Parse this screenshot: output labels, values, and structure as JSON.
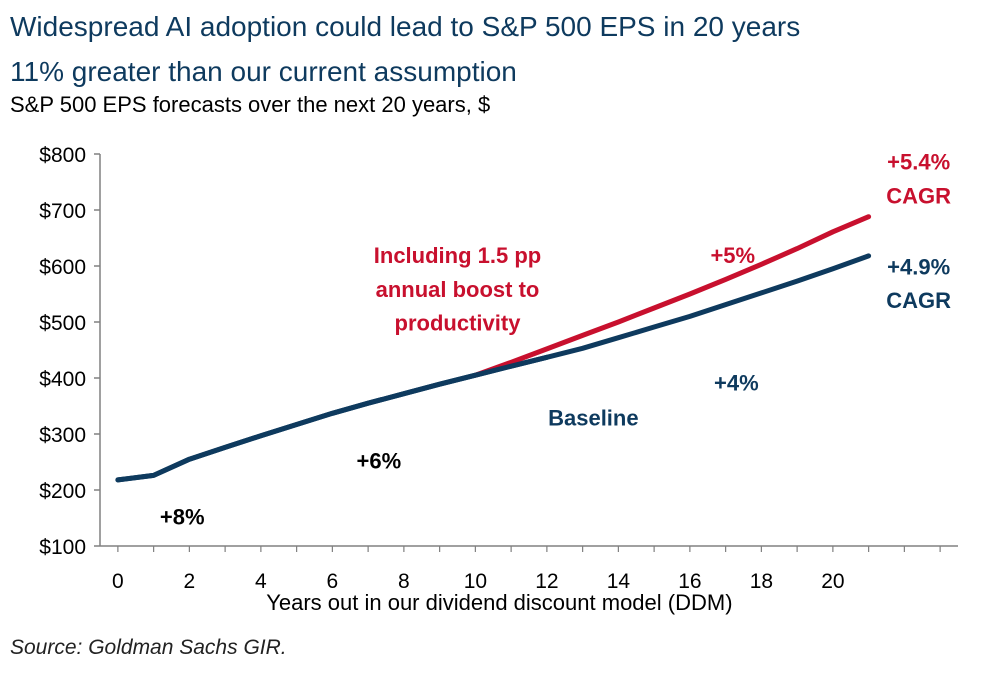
{
  "title_line1": "Widespread AI adoption could lead to S&P 500 EPS in 20 years",
  "title_line2": "11% greater than our current assumption",
  "subtitle": "S&P 500 EPS forecasts over the next 20 years, $",
  "source": "Source: Goldman Sachs GIR.",
  "colors": {
    "baseline": "#0e3a5e",
    "ai": "#c8102e",
    "title": "#0e3a5e"
  },
  "chart_data": {
    "type": "line",
    "xlabel": "Years out in our dividend discount model (DDM)",
    "ylabel": "",
    "xlim": [
      -0.5,
      23.5
    ],
    "ylim": [
      100,
      800
    ],
    "xticks": [
      0,
      2,
      4,
      6,
      8,
      10,
      12,
      14,
      16,
      18,
      20
    ],
    "yticks": [
      100,
      200,
      300,
      400,
      500,
      600,
      700,
      800
    ],
    "ytick_labels": [
      "$100",
      "$200",
      "$300",
      "$400",
      "$500",
      "$600",
      "$700",
      "$800"
    ],
    "grid": false,
    "legend": "none",
    "series": [
      {
        "key": "baseline",
        "x": [
          0,
          1,
          2,
          3,
          4,
          5,
          6,
          7,
          8,
          9,
          10,
          11,
          12,
          13,
          14,
          15,
          16,
          17,
          18,
          19,
          20,
          21
        ],
        "values": [
          218,
          226,
          255,
          276,
          297,
          317,
          337,
          355,
          372,
          389,
          405,
          421,
          437,
          453,
          472,
          491,
          510,
          531,
          552,
          573,
          595,
          618
        ]
      },
      {
        "key": "ai",
        "x": [
          10,
          11,
          12,
          13,
          14,
          15,
          16,
          17,
          18,
          19,
          20,
          21
        ],
        "values": [
          405,
          428,
          452,
          476,
          500,
          525,
          550,
          576,
          603,
          631,
          661,
          688
        ]
      }
    ],
    "annotations": [
      {
        "key": "g8",
        "text": "+8%",
        "x": 1.8,
        "y": 138,
        "color": "#000000"
      },
      {
        "key": "g6",
        "text": "+6%",
        "x": 7.3,
        "y": 238,
        "color": "#000000"
      },
      {
        "key": "g4",
        "text": "+4%",
        "x": 17.3,
        "y": 378,
        "color": "#0e3a5e"
      },
      {
        "key": "g5",
        "text": "+5%",
        "x": 17.2,
        "y": 605,
        "color": "#c8102e"
      },
      {
        "key": "baseline",
        "text": "Baseline",
        "x": 13.3,
        "y": 315,
        "color": "#0e3a5e"
      },
      {
        "key": "incl1",
        "text": "Including 1.5 pp",
        "x": 9.5,
        "y": 605,
        "color": "#c8102e"
      },
      {
        "key": "incl2",
        "text": "annual boost to",
        "x": 9.5,
        "y": 545,
        "color": "#c8102e"
      },
      {
        "key": "incl3",
        "text": "productivity",
        "x": 9.5,
        "y": 485,
        "color": "#c8102e"
      },
      {
        "key": "cagr54a",
        "text": "+5.4%",
        "x": 22.4,
        "y": 772,
        "color": "#c8102e"
      },
      {
        "key": "cagr54b",
        "text": "CAGR",
        "x": 22.4,
        "y": 712,
        "color": "#c8102e"
      },
      {
        "key": "cagr49a",
        "text": "+4.9%",
        "x": 22.4,
        "y": 585,
        "color": "#0e3a5e"
      },
      {
        "key": "cagr49b",
        "text": "CAGR",
        "x": 22.4,
        "y": 525,
        "color": "#0e3a5e"
      }
    ]
  }
}
